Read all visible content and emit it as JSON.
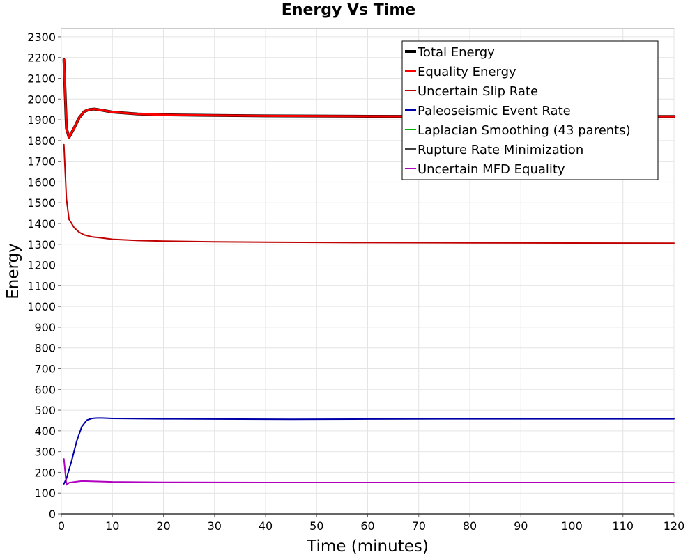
{
  "chart_data": {
    "type": "line",
    "title": "Energy Vs Time",
    "xlabel": "Time (minutes)",
    "ylabel": "Energy",
    "xlim": [
      0,
      120
    ],
    "ylim": [
      0,
      2340
    ],
    "x_ticks": [
      0,
      10,
      20,
      30,
      40,
      50,
      60,
      70,
      80,
      90,
      100,
      110,
      120
    ],
    "y_ticks": [
      0,
      100,
      200,
      300,
      400,
      500,
      600,
      700,
      800,
      900,
      1000,
      1100,
      1200,
      1300,
      1400,
      1500,
      1600,
      1700,
      1800,
      1900,
      2000,
      2100,
      2200,
      2300
    ],
    "grid": true,
    "legend_position": "top-right",
    "series": [
      {
        "name": "Total Energy",
        "color": "#000000",
        "width": 4,
        "points": [
          [
            0.5,
            2190
          ],
          [
            1.0,
            1860
          ],
          [
            1.5,
            1815
          ],
          [
            2.5,
            1860
          ],
          [
            3.5,
            1910
          ],
          [
            4.5,
            1940
          ],
          [
            5.5,
            1950
          ],
          [
            6.5,
            1952
          ],
          [
            8,
            1946
          ],
          [
            10,
            1937
          ],
          [
            15,
            1928
          ],
          [
            20,
            1924
          ],
          [
            30,
            1921
          ],
          [
            40,
            1919
          ],
          [
            60,
            1917
          ],
          [
            80,
            1916
          ],
          [
            100,
            1916
          ],
          [
            120,
            1916
          ]
        ]
      },
      {
        "name": "Equality Energy",
        "color": "#ff0000",
        "width": 3,
        "points": [
          [
            0.5,
            2190
          ],
          [
            1.0,
            1860
          ],
          [
            1.5,
            1815
          ],
          [
            2.5,
            1860
          ],
          [
            3.5,
            1910
          ],
          [
            4.5,
            1940
          ],
          [
            5.5,
            1950
          ],
          [
            6.5,
            1952
          ],
          [
            8,
            1946
          ],
          [
            10,
            1937
          ],
          [
            15,
            1928
          ],
          [
            20,
            1924
          ],
          [
            30,
            1921
          ],
          [
            40,
            1919
          ],
          [
            60,
            1917
          ],
          [
            80,
            1916
          ],
          [
            100,
            1916
          ],
          [
            120,
            1916
          ]
        ]
      },
      {
        "name": "Uncertain Slip Rate",
        "color": "#c00000",
        "width": 2,
        "points": [
          [
            0.5,
            1780
          ],
          [
            1.0,
            1520
          ],
          [
            1.5,
            1420
          ],
          [
            2.5,
            1380
          ],
          [
            3.5,
            1358
          ],
          [
            4.5,
            1345
          ],
          [
            6,
            1336
          ],
          [
            8,
            1330
          ],
          [
            10,
            1324
          ],
          [
            15,
            1318
          ],
          [
            20,
            1315
          ],
          [
            30,
            1312
          ],
          [
            40,
            1310
          ],
          [
            60,
            1308
          ],
          [
            80,
            1307
          ],
          [
            100,
            1306
          ],
          [
            120,
            1305
          ]
        ]
      },
      {
        "name": "Paleoseismic Event Rate",
        "color": "#0000a8",
        "width": 2,
        "points": [
          [
            0.5,
            145
          ],
          [
            1.0,
            170
          ],
          [
            2,
            255
          ],
          [
            3,
            350
          ],
          [
            4,
            420
          ],
          [
            5,
            452
          ],
          [
            6,
            460
          ],
          [
            7,
            462
          ],
          [
            8,
            462
          ],
          [
            10,
            460
          ],
          [
            20,
            458
          ],
          [
            30,
            457
          ],
          [
            45,
            456
          ],
          [
            60,
            457
          ],
          [
            80,
            458
          ],
          [
            100,
            458
          ],
          [
            120,
            458
          ]
        ]
      },
      {
        "name": "Laplacian Smoothing (43 parents)",
        "color": "#00b000",
        "width": 2,
        "points": []
      },
      {
        "name": "Rupture Rate Minimization",
        "color": "#404040",
        "width": 2,
        "points": []
      },
      {
        "name": "Uncertain MFD Equality",
        "color": "#b000c0",
        "width": 2,
        "points": [
          [
            0.5,
            265
          ],
          [
            1.0,
            140
          ],
          [
            1.5,
            150
          ],
          [
            3,
            155
          ],
          [
            4,
            158
          ],
          [
            6,
            157
          ],
          [
            10,
            154
          ],
          [
            20,
            152
          ],
          [
            40,
            151
          ],
          [
            60,
            151
          ],
          [
            80,
            151
          ],
          [
            100,
            151
          ],
          [
            120,
            151
          ]
        ]
      }
    ]
  }
}
